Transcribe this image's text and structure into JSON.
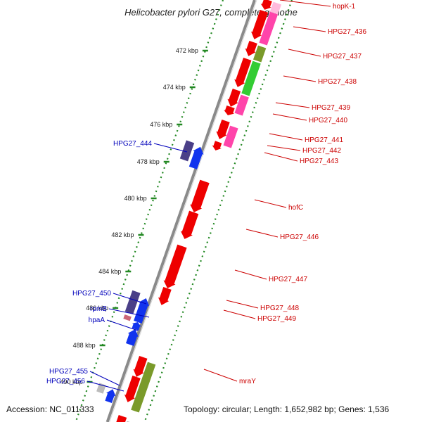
{
  "title": "Helicobacter pylori G27, complete genome",
  "footer": {
    "accession": "Accession: NC_011333",
    "summary": "Topology: circular; Length: 1,652,982 bp; Genes: 1,536"
  },
  "colors": {
    "red": "#ee0000",
    "pink": "#ff44aa",
    "light_pink": "#ffbbdd",
    "olive": "#7a9a2a",
    "green": "#33cc33",
    "navy": "#4a3f88",
    "blue": "#1133ee",
    "gray": "#bbbbbb",
    "rose": "#cc6677",
    "label_red": "#cc0000",
    "label_blue": "#0000bb",
    "tick_green": "#228822"
  },
  "ticks": [
    {
      "label": "472 kbp"
    },
    {
      "label": "474 kbp"
    },
    {
      "label": "476 kbp"
    },
    {
      "label": "478 kbp"
    },
    {
      "label": "480 kbp"
    },
    {
      "label": "482 kbp"
    },
    {
      "label": "484 kbp"
    },
    {
      "label": "486 kbp"
    },
    {
      "label": "488 kbp"
    },
    {
      "label": "490 kbp"
    }
  ],
  "right_genes": [
    {
      "name": "hopK-1"
    },
    {
      "name": "HPG27_436"
    },
    {
      "name": "HPG27_437"
    },
    {
      "name": "HPG27_438"
    },
    {
      "name": "HPG27_439"
    },
    {
      "name": "HPG27_440"
    },
    {
      "name": "HPG27_441"
    },
    {
      "name": "HPG27_442"
    },
    {
      "name": "HPG27_443"
    },
    {
      "name": "hofC"
    },
    {
      "name": "HPG27_446"
    },
    {
      "name": "HPG27_447"
    },
    {
      "name": "HPG27_448"
    },
    {
      "name": "HPG27_449"
    },
    {
      "name": "mraY"
    }
  ],
  "left_genes": [
    {
      "name": "HPG27_444"
    },
    {
      "name": "HPG27_450"
    },
    {
      "name": "rpmB"
    },
    {
      "name": "hpaA"
    },
    {
      "name": "HPG27_455"
    },
    {
      "name": "HPG27_456"
    }
  ]
}
